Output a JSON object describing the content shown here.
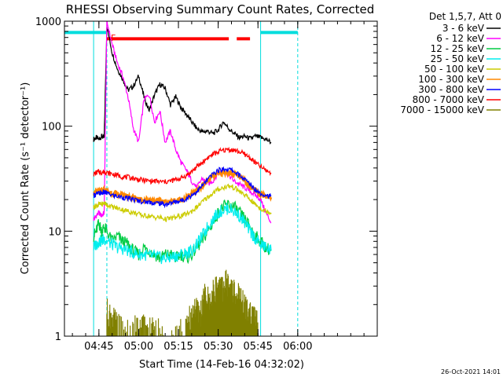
{
  "chart_data": {
    "type": "line",
    "title": "RHESSI Observing Summary Count Rates, Corrected",
    "xlabel": "Start Time (14-Feb-16 04:32:02)",
    "ylabel": "Corrected Count Rate (s⁻¹ detector⁻¹)",
    "yscale": "log",
    "ylim": [
      1,
      1000
    ],
    "xlim_minutes": [
      0,
      118
    ],
    "x_ticks": [
      {
        "label": "04:45",
        "minute": 13
      },
      {
        "label": "05:00",
        "minute": 28
      },
      {
        "label": "05:15",
        "minute": 43
      },
      {
        "label": "05:30",
        "minute": 58
      },
      {
        "label": "05:45",
        "minute": 73
      },
      {
        "label": "06:00",
        "minute": 88
      }
    ],
    "y_ticks": [
      {
        "label": "1",
        "value": 1
      },
      {
        "label": "10",
        "value": 10
      },
      {
        "label": "100",
        "value": 100
      },
      {
        "label": "1000",
        "value": 1000
      }
    ],
    "legend_title": "Det 1,5,7, Att 0",
    "legend_position": "outside-right",
    "flare_flag_label": "F",
    "timestamp": "26-Oct-2021 14:01",
    "series": [
      {
        "name": "3 - 6 keV",
        "color": "#000000",
        "x": [
          11,
          12,
          13,
          14,
          15,
          16,
          18,
          20,
          22,
          24,
          26,
          28,
          30,
          32,
          34,
          36,
          38,
          40,
          42,
          44,
          46,
          48,
          50,
          52,
          54,
          56,
          58,
          60,
          62,
          64,
          66,
          68,
          70,
          72,
          74,
          76,
          78
        ],
        "y": [
          75,
          78,
          75,
          80,
          77,
          900,
          500,
          350,
          280,
          220,
          240,
          300,
          190,
          140,
          200,
          250,
          230,
          160,
          190,
          150,
          130,
          110,
          95,
          88,
          90,
          85,
          92,
          110,
          95,
          85,
          78,
          80,
          76,
          80,
          78,
          75,
          70
        ]
      },
      {
        "name": "6 - 12 keV",
        "color": "#ff00ff",
        "x": [
          11,
          12,
          13,
          14,
          15,
          16,
          18,
          20,
          22,
          24,
          26,
          28,
          30,
          32,
          34,
          36,
          38,
          40,
          42,
          44,
          46,
          48,
          50,
          52,
          54,
          56,
          58,
          60,
          62,
          64,
          66,
          68,
          70,
          72,
          74,
          76,
          78
        ],
        "y": [
          13,
          14,
          15,
          14,
          15,
          1000,
          600,
          400,
          300,
          190,
          95,
          70,
          180,
          200,
          110,
          140,
          70,
          90,
          60,
          45,
          38,
          30,
          26,
          32,
          28,
          30,
          36,
          38,
          34,
          30,
          28,
          26,
          24,
          22,
          20,
          15,
          12
        ]
      },
      {
        "name": "12 - 25 keV",
        "color": "#00cc44",
        "x": [
          11,
          12,
          13,
          14,
          15,
          16,
          18,
          20,
          22,
          24,
          26,
          28,
          30,
          32,
          34,
          36,
          38,
          40,
          42,
          44,
          46,
          48,
          50,
          52,
          54,
          56,
          58,
          60,
          62,
          64,
          66,
          68,
          70,
          72,
          74,
          76,
          78
        ],
        "y": [
          9,
          10,
          12,
          10,
          11,
          10,
          8,
          9,
          8,
          7.5,
          6.5,
          6,
          7,
          6.5,
          6,
          5.5,
          6,
          6,
          5.5,
          6,
          5.5,
          6,
          7,
          8,
          10,
          12,
          15,
          17,
          18,
          17,
          15,
          13,
          11,
          9,
          8,
          7,
          6.5
        ]
      },
      {
        "name": "25 - 50 keV",
        "color": "#00eeee",
        "x": [
          11,
          12,
          13,
          14,
          15,
          16,
          18,
          20,
          22,
          24,
          26,
          28,
          30,
          32,
          34,
          36,
          38,
          40,
          42,
          44,
          46,
          48,
          50,
          52,
          54,
          56,
          58,
          60,
          62,
          64,
          66,
          68,
          70,
          72,
          74,
          76,
          78
        ],
        "y": [
          7,
          7.5,
          8,
          8,
          8.5,
          8,
          7.5,
          7,
          6.8,
          6.5,
          6.2,
          6,
          6,
          5.8,
          5.8,
          5.6,
          5.5,
          5.6,
          5.8,
          6,
          6.2,
          6.5,
          7.5,
          9,
          11,
          13,
          15,
          16,
          16.5,
          15.5,
          14,
          12,
          10,
          8.5,
          7.5,
          7,
          6.5
        ]
      },
      {
        "name": "50 - 100 keV",
        "color": "#cccc00",
        "x": [
          11,
          12,
          13,
          14,
          15,
          16,
          18,
          20,
          22,
          24,
          26,
          28,
          30,
          32,
          34,
          36,
          38,
          40,
          42,
          44,
          46,
          48,
          50,
          52,
          54,
          56,
          58,
          60,
          62,
          64,
          66,
          68,
          70,
          72,
          74,
          76,
          78
        ],
        "y": [
          17,
          17.5,
          18,
          18,
          18.5,
          18,
          17,
          16.5,
          16,
          15.5,
          15,
          14.5,
          14,
          14,
          13.5,
          13.5,
          13,
          13.2,
          13.5,
          14,
          14.5,
          15.5,
          17,
          19,
          21,
          23,
          25,
          26,
          27,
          26,
          24,
          22,
          20,
          18,
          16.5,
          15.5,
          15
        ]
      },
      {
        "name": "100 - 300 keV",
        "color": "#ff8800",
        "x": [
          11,
          12,
          13,
          14,
          15,
          16,
          18,
          20,
          22,
          24,
          26,
          28,
          30,
          32,
          34,
          36,
          38,
          40,
          42,
          44,
          46,
          48,
          50,
          52,
          54,
          56,
          58,
          60,
          62,
          64,
          66,
          68,
          70,
          72,
          74,
          76,
          78
        ],
        "y": [
          23,
          23.5,
          24,
          24,
          24.5,
          24,
          23,
          22.5,
          22,
          21.5,
          21,
          20.5,
          20,
          20,
          19.5,
          19.5,
          19,
          19.2,
          19.5,
          20,
          21,
          22.5,
          24.5,
          27,
          30,
          33,
          35,
          36,
          36,
          35,
          33,
          30,
          27,
          24.5,
          22.5,
          21.5,
          21
        ]
      },
      {
        "name": "300 - 800 keV",
        "color": "#0000ff",
        "x": [
          11,
          12,
          13,
          14,
          15,
          16,
          18,
          20,
          22,
          24,
          26,
          28,
          30,
          32,
          34,
          36,
          38,
          40,
          42,
          44,
          46,
          48,
          50,
          52,
          54,
          56,
          58,
          60,
          62,
          64,
          66,
          68,
          70,
          72,
          74,
          76,
          78
        ],
        "y": [
          22,
          22.5,
          23,
          23,
          23.5,
          23,
          22,
          21.5,
          21,
          20.5,
          20,
          19.5,
          19,
          19,
          18.5,
          18.5,
          18,
          18.5,
          19,
          19.5,
          20.5,
          22,
          24,
          27,
          31,
          35,
          38,
          39,
          39,
          37,
          34,
          31,
          28,
          25,
          23,
          22,
          21.5
        ]
      },
      {
        "name": "800 - 7000 keV",
        "color": "#ff0000",
        "x": [
          11,
          12,
          13,
          14,
          15,
          16,
          18,
          20,
          22,
          24,
          26,
          28,
          30,
          32,
          34,
          36,
          38,
          40,
          42,
          44,
          46,
          48,
          50,
          52,
          54,
          56,
          58,
          60,
          62,
          64,
          66,
          68,
          70,
          72,
          74,
          76,
          78
        ],
        "y": [
          35,
          36,
          37,
          36,
          37,
          36,
          35,
          34,
          33,
          32.5,
          32,
          31,
          30.5,
          30,
          30,
          29.5,
          29.5,
          30,
          31,
          32,
          34,
          37,
          41,
          45,
          50,
          54,
          57,
          59,
          60,
          59,
          57,
          54,
          50,
          45,
          41,
          38,
          36
        ]
      },
      {
        "name": "7000 - 15000 keV",
        "color": "#808000",
        "x": [
          16,
          18,
          20,
          26,
          30,
          34,
          40,
          46,
          49,
          51,
          53,
          55,
          57,
          59,
          61,
          63,
          65,
          67,
          69,
          71,
          73
        ],
        "y": [
          1.8,
          1.5,
          1.3,
          1.2,
          1.3,
          1.2,
          1.1,
          1.2,
          2,
          1.6,
          2.5,
          2.2,
          3,
          2.8,
          3.4,
          3,
          2.6,
          2.2,
          1.8,
          1.6,
          1.4
        ]
      }
    ],
    "annotations": {
      "vertical_lines_minutes": [
        11,
        16,
        74,
        88
      ],
      "attenuator_bars": {
        "color": "#00dddd",
        "segments_minutes": [
          [
            0,
            16
          ],
          [
            74,
            88
          ]
        ],
        "level": 780
      },
      "flare_bars": {
        "color": "#ff0000",
        "segments_minutes": [
          [
            16,
            62
          ],
          [
            65,
            70
          ]
        ],
        "level": 680
      }
    }
  }
}
